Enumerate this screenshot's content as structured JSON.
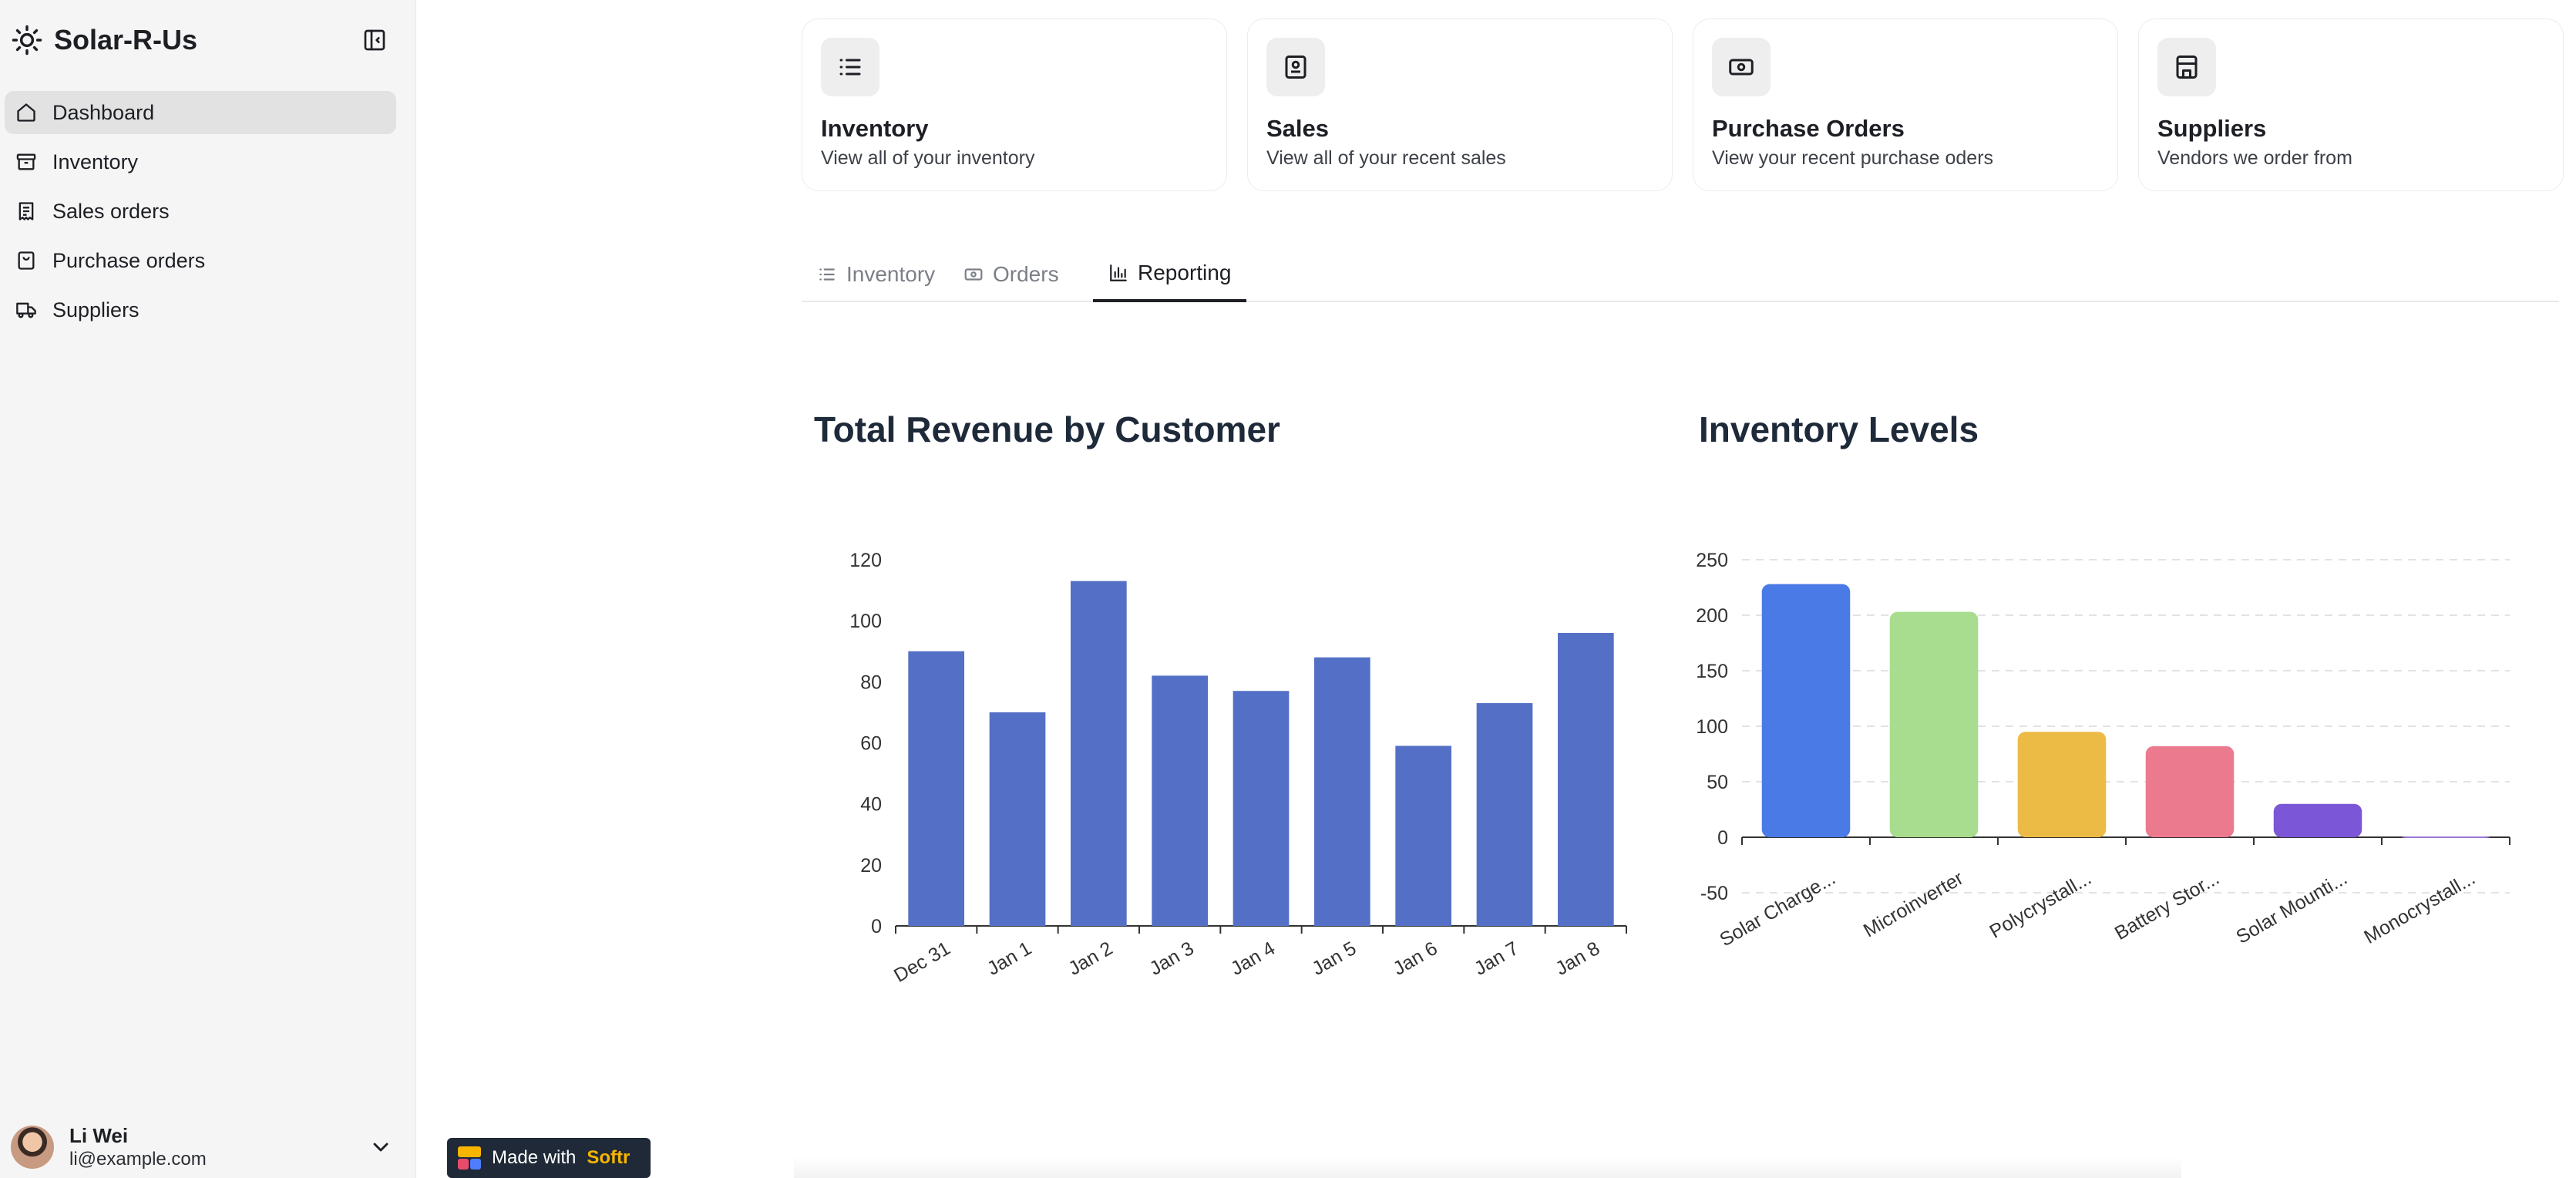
{
  "app": {
    "name": "Solar-R-Us"
  },
  "sidebar": {
    "items": [
      {
        "label": "Dashboard",
        "icon": "home-icon",
        "active": true
      },
      {
        "label": "Inventory",
        "icon": "archive-icon"
      },
      {
        "label": "Sales orders",
        "icon": "receipt-icon"
      },
      {
        "label": "Purchase orders",
        "icon": "bag-icon"
      },
      {
        "label": "Suppliers",
        "icon": "truck-icon"
      }
    ]
  },
  "user": {
    "name": "Li Wei",
    "email": "li@example.com"
  },
  "cards": [
    {
      "title": "Inventory",
      "subtitle": "View all of your inventory",
      "icon": "list-icon"
    },
    {
      "title": "Sales",
      "subtitle": "View all of your recent sales",
      "icon": "receipt-icon"
    },
    {
      "title": "Purchase Orders",
      "subtitle": "View your recent purchase oders",
      "icon": "banknote-icon"
    },
    {
      "title": "Suppliers",
      "subtitle": "Vendors we order from",
      "icon": "store-icon"
    }
  ],
  "tabs": [
    {
      "label": "Inventory",
      "icon": "list-icon"
    },
    {
      "label": "Orders",
      "icon": "banknote-icon"
    },
    {
      "label": "Reporting",
      "icon": "bar-chart-icon",
      "active": true
    }
  ],
  "badge": {
    "prefix": "Made with",
    "brand": "Softr"
  },
  "colors": {
    "bar_primary": "#5470c6",
    "accent": "#f7b500"
  },
  "chart_data": [
    {
      "type": "bar",
      "title": "Total Revenue by Customer",
      "categories": [
        "Dec 31",
        "Jan 1",
        "Jan 2",
        "Jan 3",
        "Jan 4",
        "Jan 5",
        "Jan 6",
        "Jan 7",
        "Jan 8"
      ],
      "values": [
        90,
        70,
        113,
        82,
        77,
        88,
        59,
        73,
        96
      ],
      "ylim": [
        0,
        120
      ],
      "yticks": [
        0,
        20,
        40,
        60,
        80,
        100,
        120
      ],
      "grid": false,
      "color": "#5470c6"
    },
    {
      "type": "bar",
      "title": "Inventory Levels",
      "categories": [
        "Solar Charge...",
        "Microinverter",
        "Polycrystall...",
        "Battery Stor...",
        "Solar Mounti...",
        "Monocrystall..."
      ],
      "values": [
        228,
        203,
        95,
        82,
        30,
        0
      ],
      "ylim": [
        -50,
        250
      ],
      "yticks": [
        -50,
        0,
        50,
        100,
        150,
        200,
        250
      ],
      "grid": true,
      "colors": [
        "#4a7ae6",
        "#a8dc8e",
        "#ecbb45",
        "#ec7a8f",
        "#7b56d6",
        "#9b7ad8"
      ]
    }
  ]
}
